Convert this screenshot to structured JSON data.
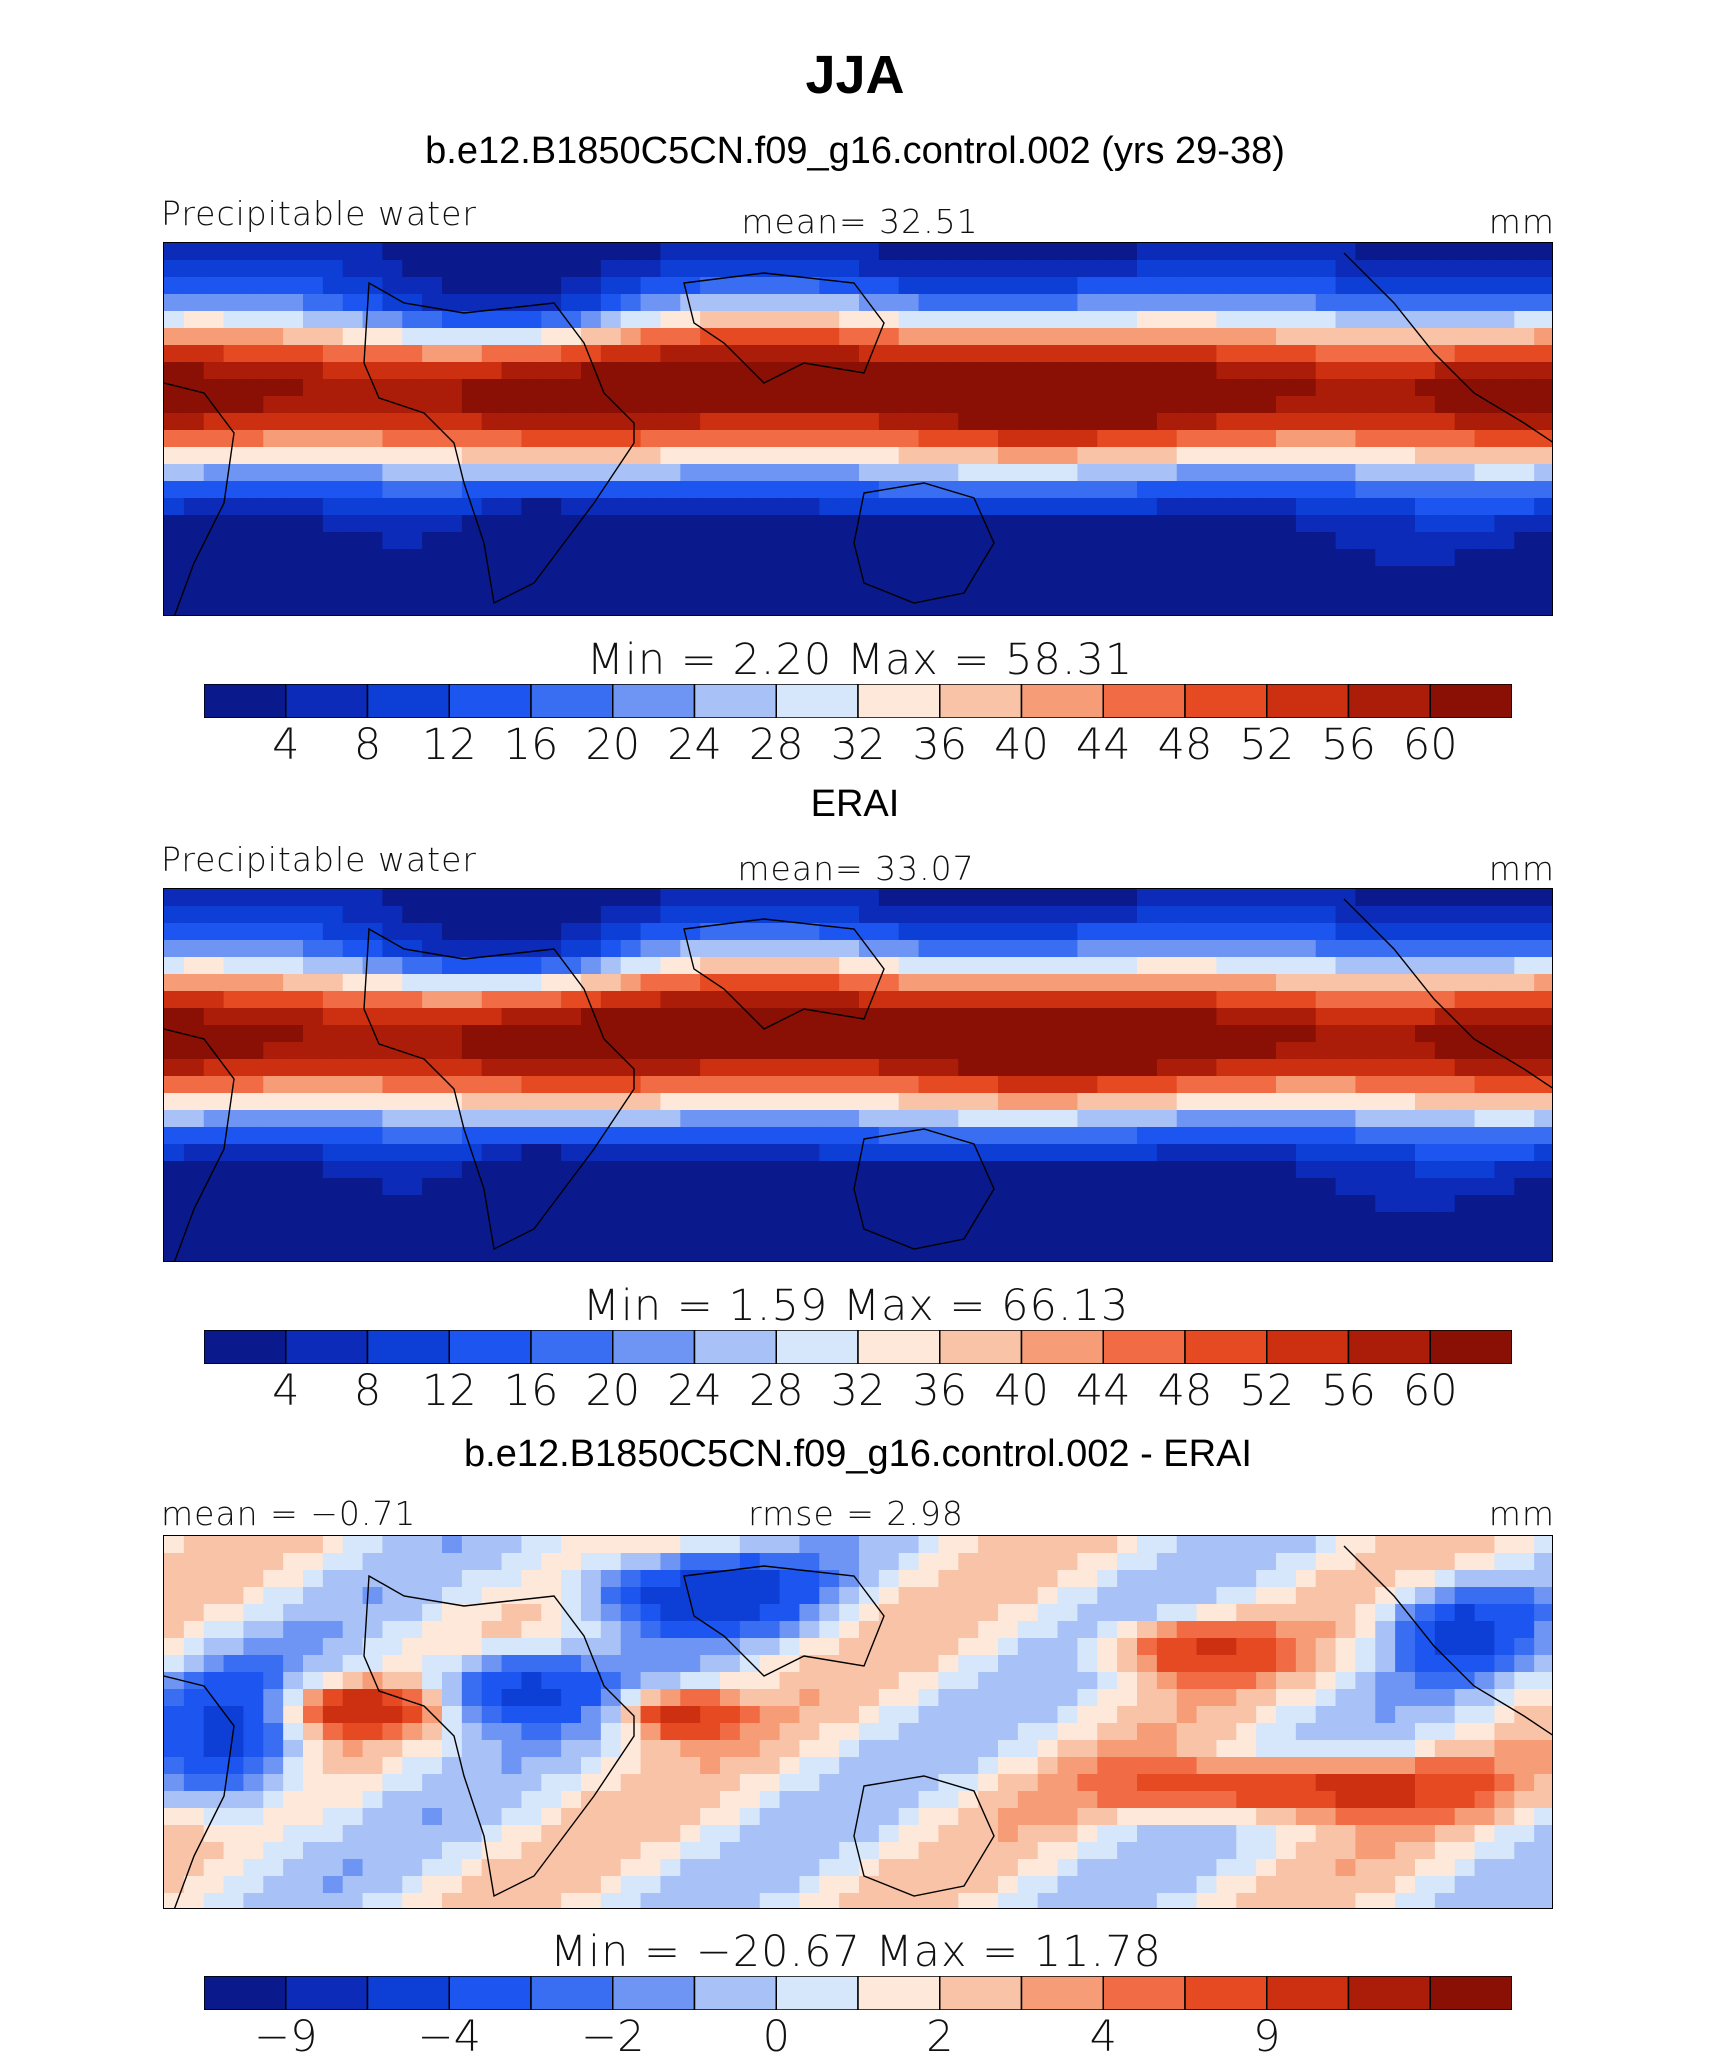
{
  "title": "JJA",
  "chart_data": [
    {
      "type": "heatmap",
      "title": "b.e12.B1850C5CN.f09_g16.control.002 (yrs 29-38)",
      "left_label": "Precipitable water",
      "center_label": "mean=   32.51",
      "units": "mm",
      "mean": 32.51,
      "min": 2.2,
      "max": 58.31,
      "minmax_text": "Min  =     2.20  Max  =    58.31",
      "colorbar_ticks": [
        "4",
        "8",
        "12",
        "16",
        "20",
        "24",
        "28",
        "32",
        "36",
        "40",
        "44",
        "48",
        "52",
        "56",
        "60"
      ],
      "range": [
        0,
        64
      ],
      "pattern": "field"
    },
    {
      "type": "heatmap",
      "title": "ERAI",
      "left_label": "Precipitable water",
      "center_label": "mean=   33.07",
      "units": "mm",
      "mean": 33.07,
      "min": 1.59,
      "max": 66.13,
      "minmax_text": "Min  =     1.59  Max  =    66.13",
      "colorbar_ticks": [
        "4",
        "8",
        "12",
        "16",
        "20",
        "24",
        "28",
        "32",
        "36",
        "40",
        "44",
        "48",
        "52",
        "56",
        "60"
      ],
      "range": [
        0,
        64
      ],
      "pattern": "field"
    },
    {
      "type": "heatmap",
      "title": "b.e12.B1850C5CN.f09_g16.control.002 - ERAI",
      "left_label": "mean =  −0.71",
      "center_label": "rmse =     2.98",
      "units": "mm",
      "mean": -0.71,
      "rmse": 2.98,
      "min": -20.67,
      "max": 11.78,
      "minmax_text": "Min  =  −20.67  Max  =    11.78",
      "colorbar_ticks": [
        "−9",
        "",
        "−4",
        "",
        "−2",
        "",
        "0",
        "",
        "2",
        "",
        "4",
        "",
        "9",
        ""
      ],
      "range": [
        -12,
        12
      ],
      "pattern": "diff"
    }
  ],
  "palette": [
    "#0a1a8c",
    "#0b2bb8",
    "#0d3fd6",
    "#1d55f0",
    "#3a6ef2",
    "#6e95f3",
    "#a8c2f7",
    "#d6e6fb",
    "#fde8da",
    "#f9c3a8",
    "#f69d77",
    "#f16c44",
    "#e64a22",
    "#cc3011",
    "#ab1d08",
    "#8a0f05"
  ]
}
